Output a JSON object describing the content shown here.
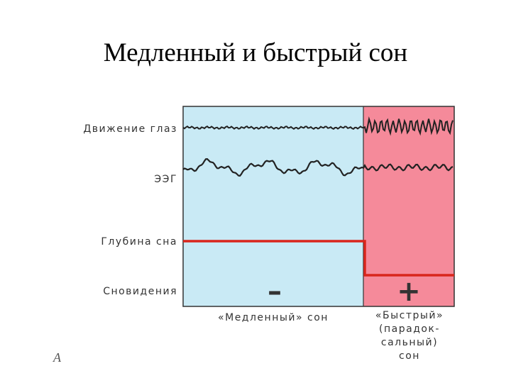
{
  "header": {
    "title": "Медленный и быстрый сон"
  },
  "rows": [
    "Движение глаз",
    "ЭЭГ",
    "Глубина сна",
    "Сновидения"
  ],
  "phases": [
    {
      "label": [
        "«Медленный» сон"
      ],
      "dreams": "–"
    },
    {
      "label": [
        "«Быстрый»",
        "(парадок-",
        "сальный)",
        "сон"
      ],
      "dreams": "+"
    }
  ],
  "figure_label": "А"
}
